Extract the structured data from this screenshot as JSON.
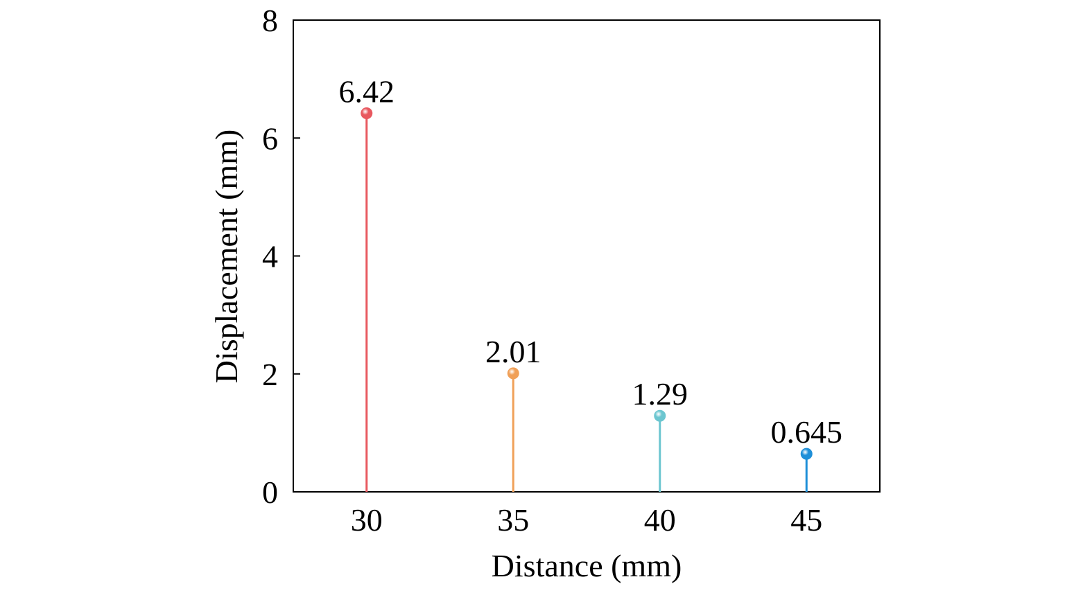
{
  "chart_data": {
    "type": "scatter",
    "style": "stem",
    "x": [
      30,
      35,
      40,
      45
    ],
    "values": [
      6.42,
      2.01,
      1.29,
      0.645
    ],
    "data_labels": [
      "6.42",
      "2.01",
      "1.29",
      "0.645"
    ],
    "colors": [
      "#e8585f",
      "#f0a058",
      "#6cc6d0",
      "#1e8fd8"
    ],
    "xlabel": "Distance (mm)",
    "ylabel": "Displacement (mm)",
    "xticks": [
      "30",
      "35",
      "40",
      "45"
    ],
    "yticks": [
      "0",
      "2",
      "4",
      "6",
      "8"
    ],
    "xlim": [
      27.5,
      47.5
    ],
    "ylim": [
      0,
      8
    ],
    "grid": false,
    "legend": "none"
  }
}
